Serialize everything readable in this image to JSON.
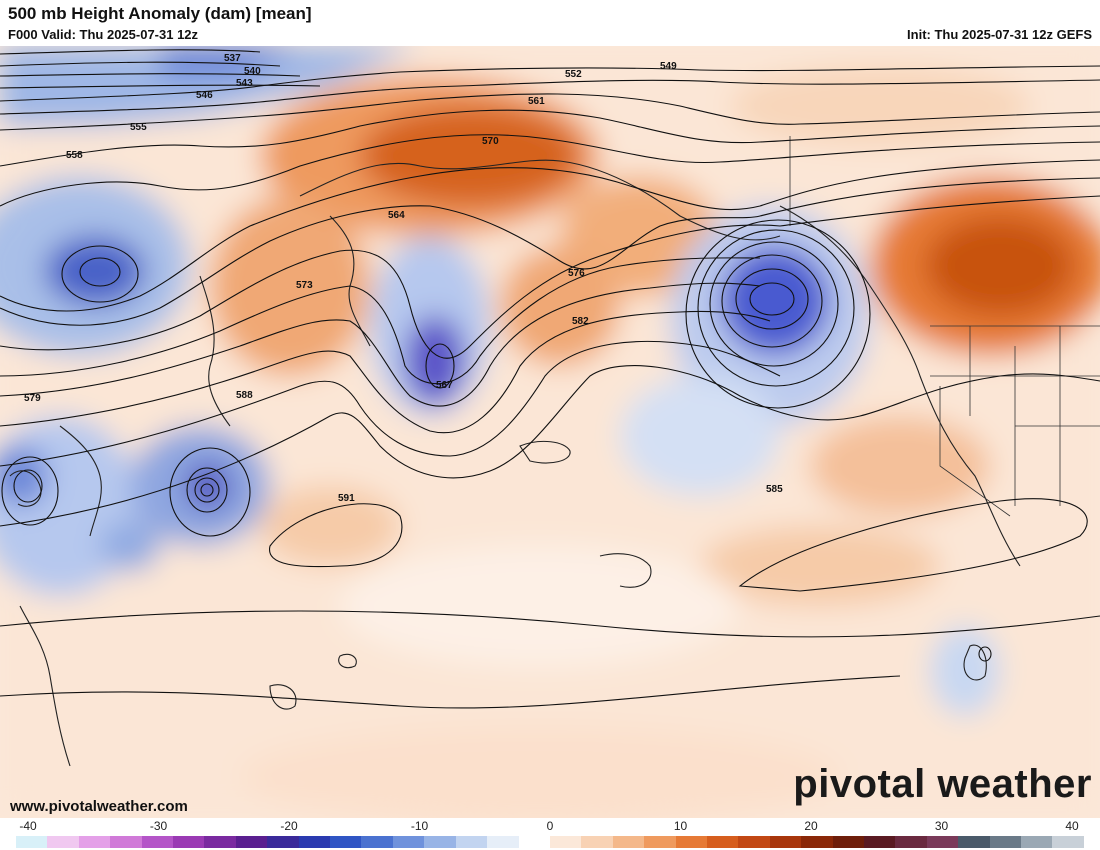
{
  "header": {
    "title": "500 mb Height Anomaly (dam) [mean]",
    "valid": "F000 Valid: Thu 2025-07-31 12z",
    "init": "Init: Thu 2025-07-31 12z GEFS"
  },
  "branding": {
    "logo_text": "pivotal weather",
    "url": "www.pivotalweather.com"
  },
  "colorbar": {
    "ticks": [
      "-40",
      "-30",
      "-20",
      "-10",
      "0",
      "10",
      "20",
      "30",
      "40"
    ],
    "range": [
      -40,
      40
    ],
    "colors": [
      "#d8f0f8",
      "#f0c8f0",
      "#e4a0e8",
      "#d07ad8",
      "#b455c8",
      "#9a3ab4",
      "#7a2aa0",
      "#5a1f90",
      "#3a2a9a",
      "#2a3ab0",
      "#2f55c4",
      "#4a72d0",
      "#6f92dc",
      "#98b4e6",
      "#c2d4f0",
      "#e6eef8",
      "#ffffff",
      "#fbe8d9",
      "#f8d2b4",
      "#f4b88a",
      "#ef9a5e",
      "#e67a36",
      "#d65e1e",
      "#c24814",
      "#a8360c",
      "#8a2808",
      "#6e1e0a",
      "#5a1a22",
      "#6a2a40",
      "#7a3a5a",
      "#4a5a6a",
      "#6a7a88",
      "#9aa8b4",
      "#c8d0d8"
    ]
  },
  "map": {
    "contour_labels": [
      "537",
      "540",
      "543",
      "546",
      "549",
      "552",
      "555",
      "558",
      "561",
      "564",
      "567",
      "570",
      "573",
      "576",
      "579",
      "582",
      "585",
      "588",
      "591"
    ]
  }
}
